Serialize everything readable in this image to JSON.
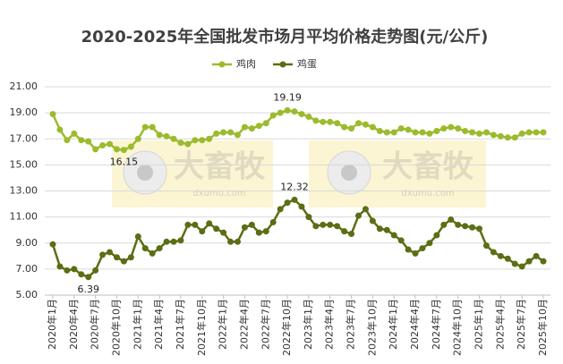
{
  "chart_data": {
    "type": "line",
    "title": "2020-2025年全国批发市场月平均价格走势图(元/公斤)",
    "watermark": {
      "brand": "大畜牧",
      "site": "dxumu.com"
    },
    "categories": [
      "2020年1月",
      null,
      null,
      "2020年4月",
      null,
      null,
      "2020年7月",
      null,
      null,
      "2020年10月",
      null,
      null,
      "2021年1月",
      null,
      null,
      "2021年4月",
      null,
      null,
      "2021年7月",
      null,
      null,
      "2021年10月",
      null,
      null,
      "2022年1月",
      null,
      null,
      "2022年4月",
      null,
      null,
      "2022年7月",
      null,
      null,
      "2022年10月",
      null,
      null,
      "2023年1月",
      null,
      null,
      "2023年4月",
      null,
      null,
      "2023年7月",
      null,
      null,
      "2023年10月",
      null,
      null,
      "2024年1月",
      null,
      null,
      "2024年4月",
      null,
      null,
      "2024年7月",
      null,
      null,
      "2024年10月",
      null,
      null,
      "2025年1月",
      null,
      null,
      "2025年4月",
      null,
      null,
      "2025年7月",
      null,
      null,
      "2025年10月"
    ],
    "series": [
      {
        "name": "鸡肉",
        "color": "#9bbb2c",
        "values": [
          18.9,
          17.7,
          16.9,
          17.4,
          16.9,
          16.8,
          16.2,
          16.5,
          16.6,
          16.2,
          16.15,
          16.4,
          17.0,
          17.9,
          17.9,
          17.3,
          17.2,
          17.0,
          16.7,
          16.6,
          16.9,
          16.9,
          17.0,
          17.4,
          17.5,
          17.5,
          17.3,
          17.9,
          17.8,
          18.0,
          18.2,
          18.8,
          19.0,
          19.19,
          19.1,
          18.9,
          18.7,
          18.4,
          18.3,
          18.3,
          18.2,
          17.9,
          17.8,
          18.2,
          18.1,
          17.9,
          17.6,
          17.5,
          17.5,
          17.8,
          17.7,
          17.5,
          17.5,
          17.4,
          17.6,
          17.8,
          17.9,
          17.8,
          17.6,
          17.5,
          17.4,
          17.5,
          17.3,
          17.2,
          17.1,
          17.1,
          17.4,
          17.5,
          17.5,
          17.5
        ],
        "value_labels": [
          null,
          null,
          null,
          null,
          null,
          null,
          null,
          null,
          null,
          null,
          "16.15",
          null,
          null,
          null,
          null,
          null,
          null,
          null,
          null,
          null,
          null,
          null,
          null,
          null,
          null,
          null,
          null,
          null,
          null,
          null,
          null,
          null,
          null,
          "19.19",
          null,
          null,
          null,
          null,
          null,
          null,
          null,
          null,
          null,
          null,
          null,
          null,
          null,
          null,
          null,
          null,
          null,
          null,
          null,
          null,
          null,
          null,
          null,
          null,
          null,
          null,
          null,
          null,
          null,
          null,
          null,
          null,
          null,
          null,
          null,
          null
        ]
      },
      {
        "name": "鸡蛋",
        "color": "#5b6e14",
        "values": [
          8.9,
          7.2,
          6.9,
          7.0,
          6.6,
          6.39,
          6.9,
          8.1,
          8.3,
          7.9,
          7.6,
          7.9,
          9.5,
          8.6,
          8.2,
          8.6,
          9.1,
          9.1,
          9.2,
          10.4,
          10.4,
          9.9,
          10.5,
          10.1,
          9.8,
          9.1,
          9.1,
          10.2,
          10.4,
          9.8,
          9.9,
          10.6,
          11.6,
          12.1,
          12.32,
          11.8,
          11.0,
          10.3,
          10.4,
          10.4,
          10.3,
          9.9,
          9.7,
          11.1,
          11.6,
          10.7,
          10.1,
          10.0,
          9.6,
          9.2,
          8.5,
          8.2,
          8.6,
          9.0,
          9.6,
          10.4,
          10.8,
          10.4,
          10.3,
          10.2,
          10.1,
          8.8,
          8.3,
          8.0,
          7.8,
          7.4,
          7.2,
          7.6,
          8.0,
          7.6
        ],
        "value_labels": [
          null,
          null,
          null,
          null,
          null,
          "6.39",
          null,
          null,
          null,
          null,
          null,
          null,
          null,
          null,
          null,
          null,
          null,
          null,
          null,
          null,
          null,
          null,
          null,
          null,
          null,
          null,
          null,
          null,
          null,
          null,
          null,
          null,
          null,
          null,
          "12.32",
          null,
          null,
          null,
          null,
          null,
          null,
          null,
          null,
          null,
          null,
          null,
          null,
          null,
          null,
          null,
          null,
          null,
          null,
          null,
          null,
          null,
          null,
          null,
          null,
          null,
          null,
          null,
          null,
          null,
          null,
          null,
          null,
          null,
          null,
          null
        ]
      }
    ],
    "ylim": [
      5,
      21
    ],
    "yticks": [
      {
        "value": 5,
        "label": "5.00"
      },
      {
        "value": 7,
        "label": "7.00"
      },
      {
        "value": 9,
        "label": "9.00"
      },
      {
        "value": 11,
        "label": "11.00"
      },
      {
        "value": 13,
        "label": "13.00"
      },
      {
        "value": 15,
        "label": "15.00"
      },
      {
        "value": 17,
        "label": "17.00"
      },
      {
        "value": 19,
        "label": "19.00"
      },
      {
        "value": 21,
        "label": "21.00"
      }
    ],
    "grid": true,
    "legend": "top"
  }
}
